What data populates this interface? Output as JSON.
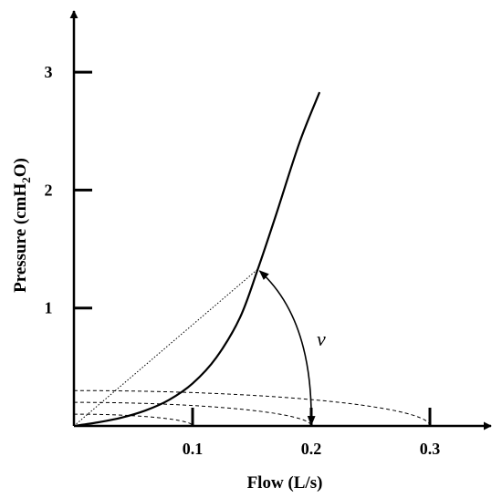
{
  "chart_data": {
    "type": "line",
    "title": "",
    "xlabel": "Flow (L/s)",
    "ylabel": "Pressure (cmH₂O)",
    "ylabel_parts": {
      "pre": "Pressure (cmH",
      "sub": "2",
      "post": "O)"
    },
    "xlim": [
      0,
      0.34
    ],
    "ylim": [
      0,
      3.35
    ],
    "xticks": [
      0.1,
      0.2,
      0.3
    ],
    "xtick_labels": [
      "0.1",
      "0.2",
      "0.3"
    ],
    "yticks": [
      1,
      2,
      3
    ],
    "ytick_labels": [
      "1",
      "2",
      "3"
    ],
    "grid": false,
    "series": [
      {
        "style": "solid",
        "points": [
          [
            0,
            0
          ],
          [
            0.02,
            0.03
          ],
          [
            0.04,
            0.07
          ],
          [
            0.06,
            0.13
          ],
          [
            0.08,
            0.22
          ],
          [
            0.1,
            0.36
          ],
          [
            0.12,
            0.58
          ],
          [
            0.14,
            0.92
          ],
          [
            0.155,
            1.33
          ],
          [
            0.17,
            1.78
          ],
          [
            0.19,
            2.4
          ],
          [
            0.207,
            2.83
          ]
        ]
      }
    ],
    "isobars": [
      {
        "radius": 0.1,
        "style": "dashed"
      },
      {
        "radius": 0.2,
        "style": "dashed"
      },
      {
        "radius": 0.3,
        "style": "dashed"
      }
    ],
    "ray": {
      "to": [
        0.155,
        1.33
      ],
      "style": "dotted"
    },
    "operating_point": [
      0.155,
      1.33
    ],
    "arc_annotation": {
      "label": "v",
      "from_point": [
        0.155,
        1.33
      ],
      "to_point": [
        0.2,
        0
      ]
    }
  }
}
